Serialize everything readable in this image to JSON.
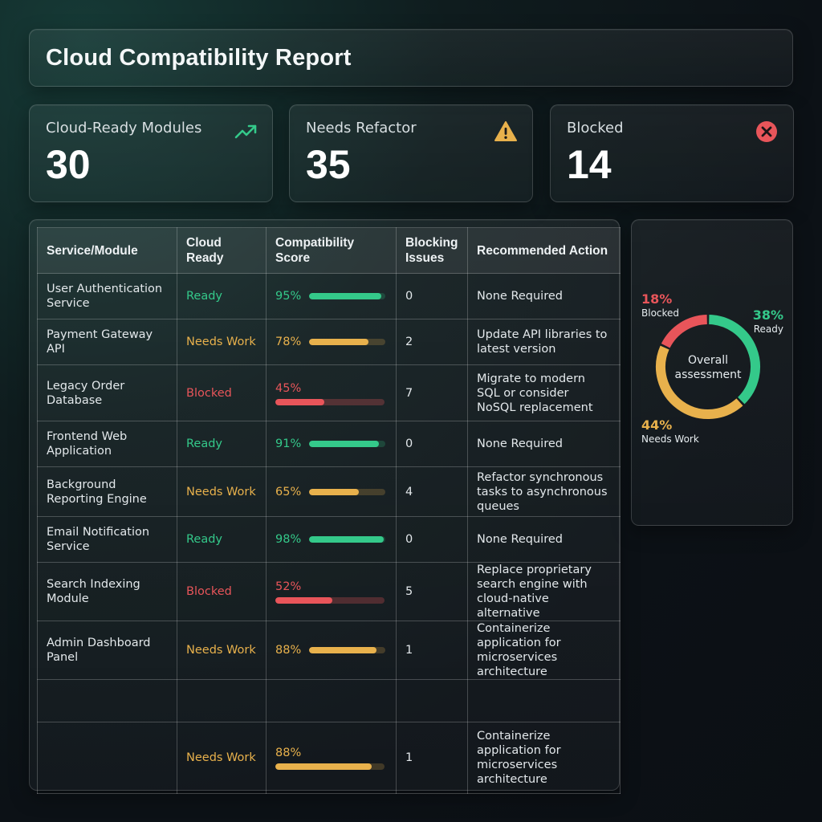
{
  "header": {
    "title": "Cloud Compatibility Report"
  },
  "kpis": [
    {
      "label": "Cloud-Ready Modules",
      "value": "30",
      "icon": "trending-up-icon",
      "color": "#34c98a"
    },
    {
      "label": "Needs Refactor",
      "value": "35",
      "icon": "warning-icon",
      "color": "#e8b14c"
    },
    {
      "label": "Blocked",
      "value": "14",
      "icon": "x-circle-icon",
      "color": "#e8555a"
    }
  ],
  "table": {
    "headers": [
      "Service/Module",
      "Cloud Ready",
      "Compatibility Score",
      "Blocking Issues",
      "Recommended Action"
    ],
    "rows": [
      {
        "service": "User Authentication Service",
        "status": "Ready",
        "score": "95%",
        "score_value": 95,
        "issues": "0",
        "action": "None Required"
      },
      {
        "service": "Payment Gateway API",
        "status": "Needs Work",
        "score": "78%",
        "score_value": 78,
        "issues": "2",
        "action": "Update API libraries to latest version"
      },
      {
        "service": "Legacy Order Database",
        "status": "Blocked",
        "score": "45%",
        "score_value": 45,
        "issues": "7",
        "action": "Migrate to modern SQL or consider NoSQL replacement"
      },
      {
        "service": "Frontend Web Application",
        "status": "Ready",
        "score": "91%",
        "score_value": 91,
        "issues": "0",
        "action": "None Required"
      },
      {
        "service": "Background Reporting Engine",
        "status": "Needs Work",
        "score": "65%",
        "score_value": 65,
        "issues": "4",
        "action": "Refactor synchronous tasks to asynchronous queues"
      },
      {
        "service": "Email Notification Service",
        "status": "Ready",
        "score": "98%",
        "score_value": 98,
        "issues": "0",
        "action": "None Required"
      },
      {
        "service": "Search Indexing Module",
        "status": "Blocked",
        "score": "52%",
        "score_value": 52,
        "issues": "5",
        "action": "Replace proprietary search engine with cloud-native alternative"
      },
      {
        "service": "Admin Dashboard Panel",
        "status": "Needs Work",
        "score": "88%",
        "score_value": 88,
        "issues": "1",
        "action": "Containerize application for microservices architecture"
      },
      {
        "service": "",
        "status": "",
        "score": "",
        "score_value": null,
        "issues": "",
        "action": ""
      },
      {
        "service": "",
        "status": "Needs Work",
        "score": "88%",
        "score_value": 88,
        "issues": "1",
        "action": "Containerize application for microservices architecture"
      }
    ]
  },
  "assessment": {
    "center_label": "Overall assessment",
    "segments": [
      {
        "name": "Ready",
        "percent": "38%",
        "value": 38,
        "color": "#34c98a"
      },
      {
        "name": "Needs Work",
        "percent": "44%",
        "value": 44,
        "color": "#e8b14c"
      },
      {
        "name": "Blocked",
        "percent": "18%",
        "value": 18,
        "color": "#e8555a"
      }
    ]
  },
  "colors": {
    "ready": "#34c98a",
    "needs_work": "#e8b14c",
    "blocked": "#e8555a"
  }
}
